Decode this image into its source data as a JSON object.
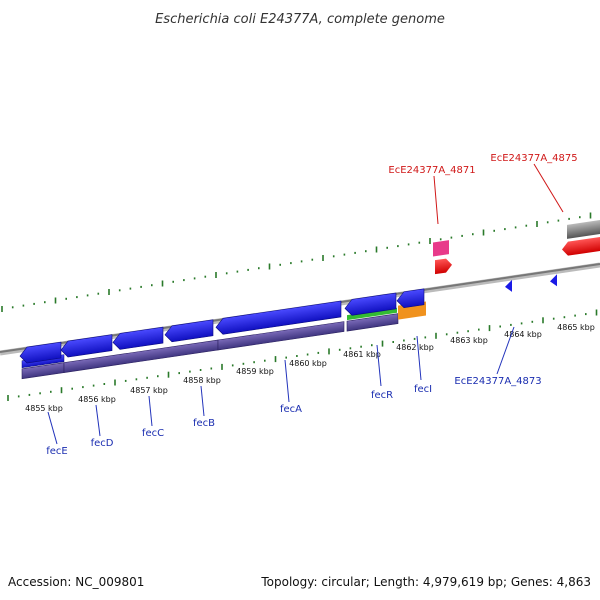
{
  "title": "Escherichia coli E24377A, complete genome",
  "footer": {
    "accession": "Accession: NC_009801",
    "summary": "Topology: circular; Length: 4,979,619 bp; Genes: 4,863"
  },
  "kbp_labels": [
    "4855 kbp",
    "4856 kbp",
    "4857 kbp",
    "4858 kbp",
    "4859 kbp",
    "4860 kbp",
    "4861 kbp",
    "4862 kbp",
    "4863 kbp",
    "4864 kbp",
    "4865 kbp"
  ],
  "genes_bottom": [
    "fecE",
    "fecD",
    "fecC",
    "fecB",
    "fecA",
    "fecR",
    "fecI"
  ],
  "genes_top": [
    "EcE24377A_4871",
    "EcE24377A_4875"
  ],
  "gene_bottom_right": "EcE24377A_4873",
  "colors": {
    "forward_cds": "#1a1ae6",
    "reverse_backbone": "#5a4a9a",
    "green_feature": "#33bb33",
    "orange_feature": "#f0921e",
    "pink_feature": "#e83a8a",
    "red_feature": "#ee1111",
    "tick": "#2a7a2a",
    "gene_blue": "#1a2db0",
    "gene_red": "#d01818"
  }
}
